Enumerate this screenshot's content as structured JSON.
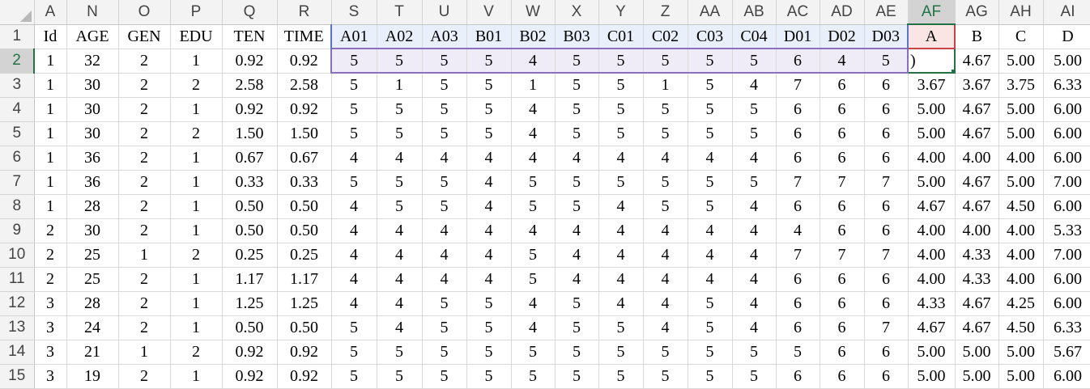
{
  "corner_label": "",
  "columns": [
    "A",
    "N",
    "O",
    "P",
    "Q",
    "R",
    "S",
    "T",
    "U",
    "V",
    "W",
    "X",
    "Y",
    "Z",
    "AA",
    "AB",
    "AC",
    "AD",
    "AE",
    "AF",
    "AG",
    "AH",
    "AI"
  ],
  "active_column": "AF",
  "active_row": "2",
  "active_cell_value": ")",
  "header_row": [
    "Id",
    "AGE",
    "GEN",
    "EDU",
    "TEN",
    "TIME",
    "A01",
    "A02",
    "A03",
    "B01",
    "B02",
    "B03",
    "C01",
    "C02",
    "C03",
    "C04",
    "D01",
    "D02",
    "D03",
    "A",
    "B",
    "C",
    "D"
  ],
  "row_numbers": [
    "1",
    "2",
    "3",
    "4",
    "5",
    "6",
    "7",
    "8",
    "9",
    "10",
    "11",
    "12",
    "13",
    "14",
    "15"
  ],
  "rows": [
    [
      "1",
      "32",
      "2",
      "1",
      "0.92",
      "0.92",
      "5",
      "5",
      "5",
      "5",
      "4",
      "5",
      "5",
      "5",
      "5",
      "5",
      "6",
      "4",
      "5",
      ")",
      "4.67",
      "5.00",
      "5.00"
    ],
    [
      "1",
      "30",
      "2",
      "2",
      "2.58",
      "2.58",
      "5",
      "1",
      "5",
      "5",
      "1",
      "5",
      "5",
      "1",
      "5",
      "4",
      "7",
      "6",
      "6",
      "3.67",
      "3.67",
      "3.75",
      "6.33"
    ],
    [
      "1",
      "30",
      "2",
      "1",
      "0.92",
      "0.92",
      "5",
      "5",
      "5",
      "5",
      "4",
      "5",
      "5",
      "5",
      "5",
      "5",
      "6",
      "6",
      "6",
      "5.00",
      "4.67",
      "5.00",
      "6.00"
    ],
    [
      "1",
      "30",
      "2",
      "2",
      "1.50",
      "1.50",
      "5",
      "5",
      "5",
      "5",
      "4",
      "5",
      "5",
      "5",
      "5",
      "5",
      "6",
      "6",
      "6",
      "5.00",
      "4.67",
      "5.00",
      "6.00"
    ],
    [
      "1",
      "36",
      "2",
      "1",
      "0.67",
      "0.67",
      "4",
      "4",
      "4",
      "4",
      "4",
      "4",
      "4",
      "4",
      "4",
      "4",
      "6",
      "6",
      "6",
      "4.00",
      "4.00",
      "4.00",
      "6.00"
    ],
    [
      "1",
      "36",
      "2",
      "1",
      "0.33",
      "0.33",
      "5",
      "5",
      "5",
      "4",
      "5",
      "5",
      "5",
      "5",
      "5",
      "5",
      "7",
      "7",
      "7",
      "5.00",
      "4.67",
      "5.00",
      "7.00"
    ],
    [
      "1",
      "28",
      "2",
      "1",
      "0.50",
      "0.50",
      "4",
      "5",
      "5",
      "4",
      "5",
      "5",
      "4",
      "5",
      "5",
      "4",
      "6",
      "6",
      "6",
      "4.67",
      "4.67",
      "4.50",
      "6.00"
    ],
    [
      "2",
      "30",
      "2",
      "1",
      "0.50",
      "0.50",
      "4",
      "4",
      "4",
      "4",
      "4",
      "4",
      "4",
      "4",
      "4",
      "4",
      "4",
      "6",
      "6",
      "4.00",
      "4.00",
      "4.00",
      "5.33"
    ],
    [
      "2",
      "25",
      "1",
      "2",
      "0.25",
      "0.25",
      "4",
      "4",
      "4",
      "4",
      "5",
      "4",
      "4",
      "4",
      "4",
      "4",
      "7",
      "7",
      "7",
      "4.00",
      "4.33",
      "4.00",
      "7.00"
    ],
    [
      "2",
      "25",
      "2",
      "1",
      "1.17",
      "1.17",
      "4",
      "4",
      "4",
      "4",
      "5",
      "4",
      "4",
      "4",
      "4",
      "4",
      "6",
      "6",
      "6",
      "4.00",
      "4.33",
      "4.00",
      "6.00"
    ],
    [
      "3",
      "28",
      "2",
      "1",
      "1.25",
      "1.25",
      "4",
      "4",
      "5",
      "5",
      "4",
      "5",
      "4",
      "4",
      "5",
      "4",
      "6",
      "6",
      "6",
      "4.33",
      "4.67",
      "4.25",
      "6.00"
    ],
    [
      "3",
      "24",
      "2",
      "1",
      "0.50",
      "0.50",
      "5",
      "4",
      "5",
      "5",
      "4",
      "5",
      "5",
      "4",
      "5",
      "4",
      "6",
      "6",
      "7",
      "4.67",
      "4.67",
      "4.50",
      "6.33"
    ],
    [
      "3",
      "21",
      "1",
      "2",
      "0.92",
      "0.92",
      "5",
      "5",
      "5",
      "5",
      "5",
      "5",
      "5",
      "5",
      "5",
      "5",
      "5",
      "6",
      "6",
      "5.00",
      "5.00",
      "5.00",
      "5.67"
    ],
    [
      "3",
      "19",
      "2",
      "1",
      "0.92",
      "0.92",
      "5",
      "5",
      "5",
      "5",
      "5",
      "5",
      "5",
      "5",
      "5",
      "5",
      "6",
      "6",
      "6",
      "5.00",
      "5.00",
      "5.00",
      "6.00"
    ]
  ],
  "colors": {
    "active_green": "#217346",
    "range_blue": "#5a74c7",
    "range_red": "#c94545",
    "range_purple": "#8b6fbf"
  }
}
